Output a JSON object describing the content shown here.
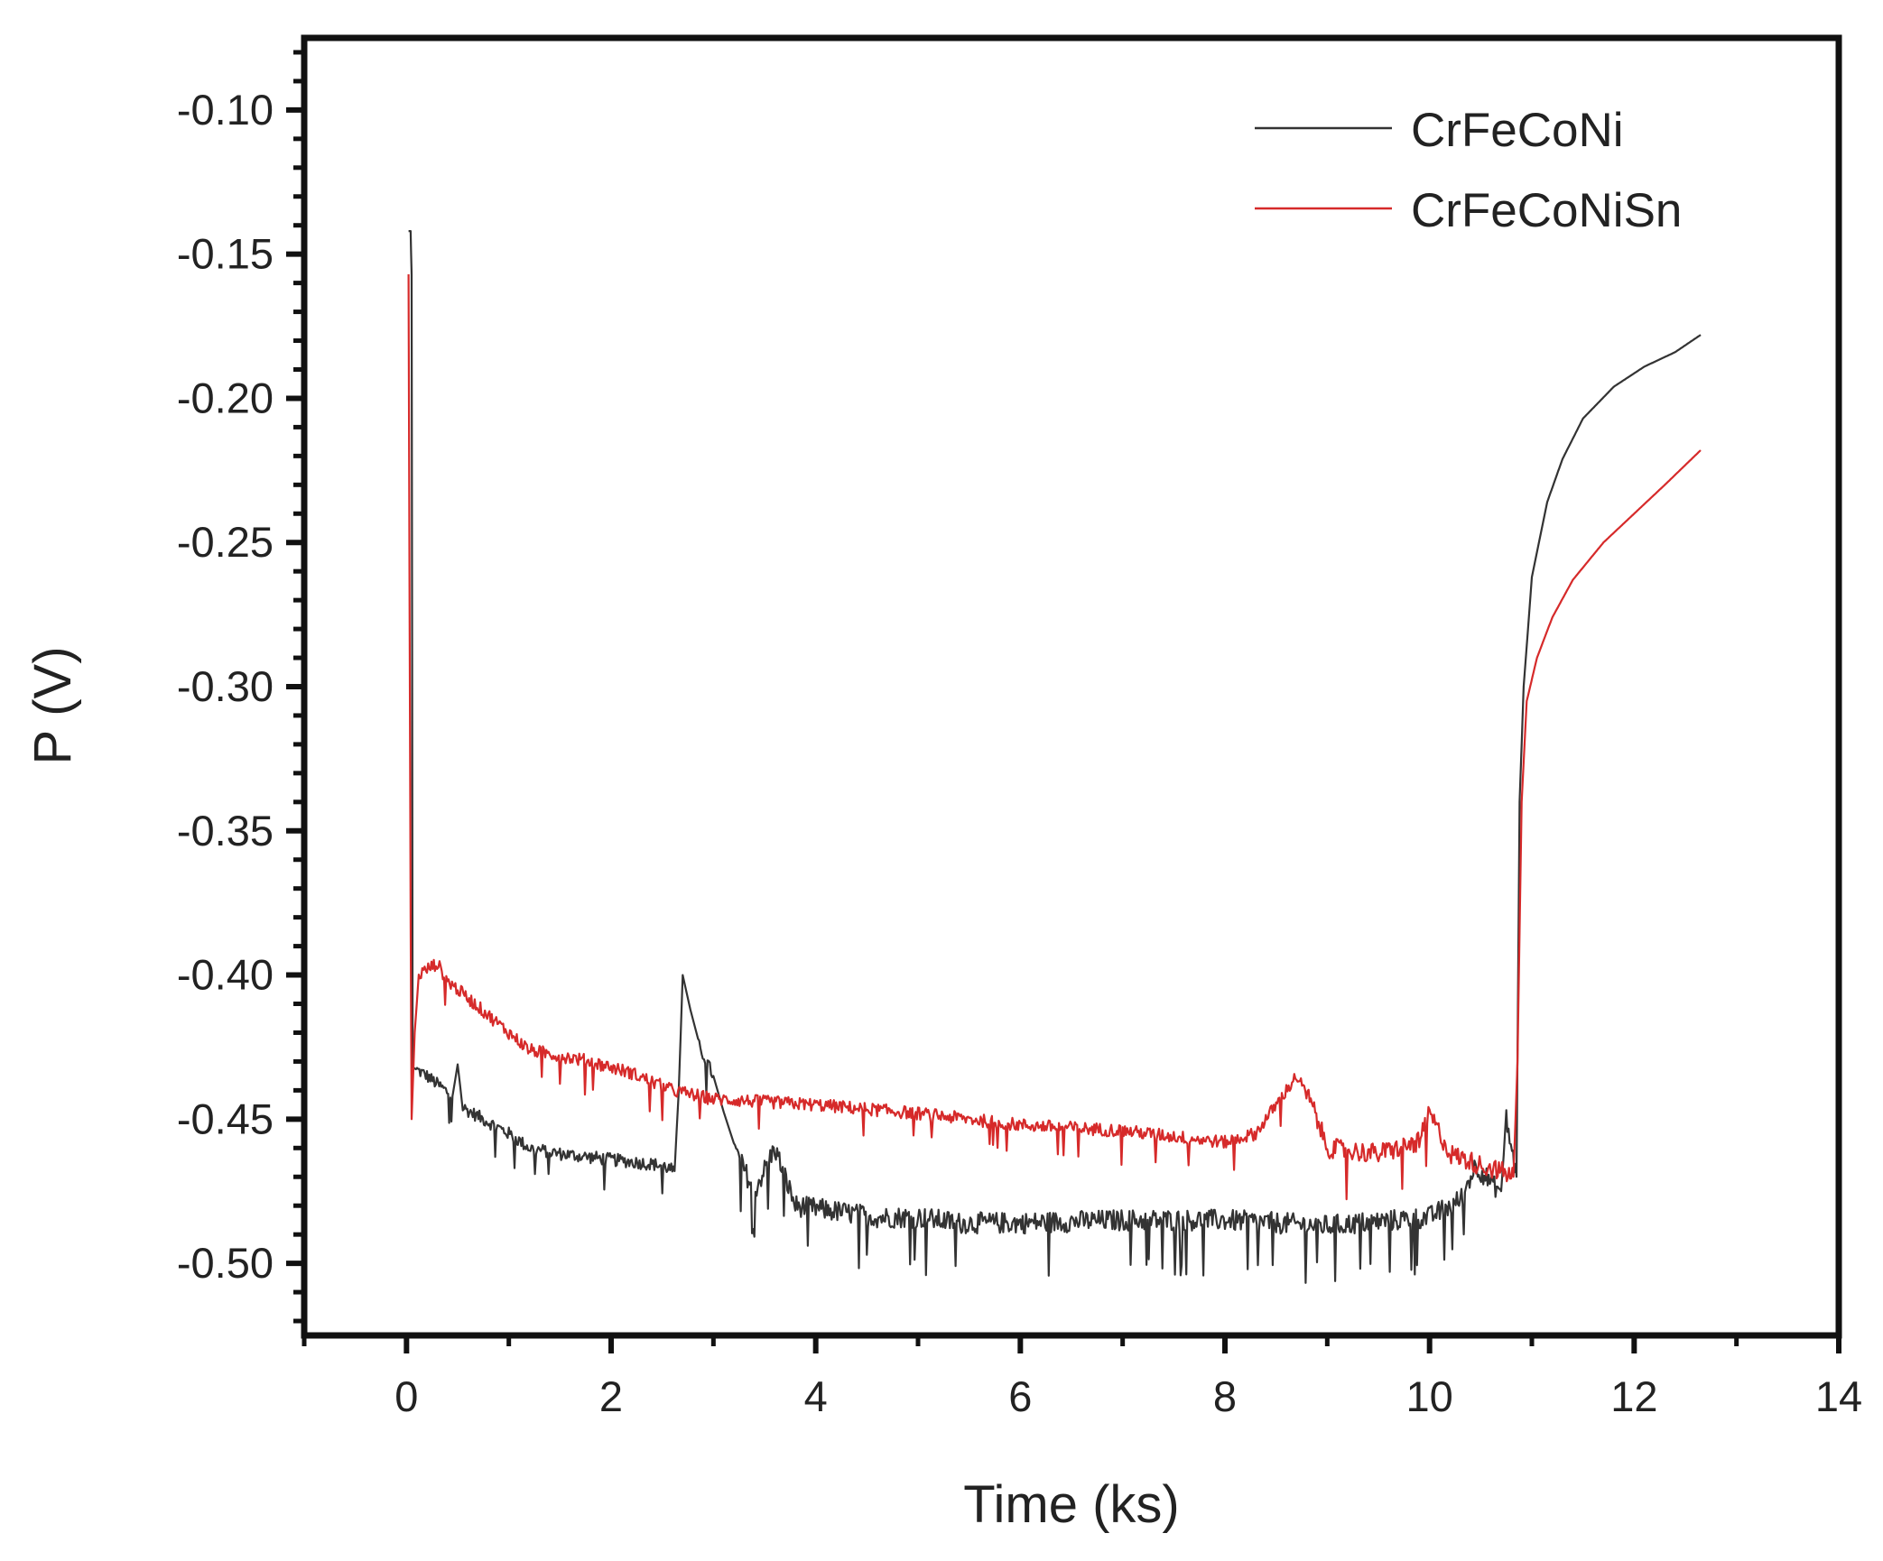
{
  "chart_data": {
    "type": "line",
    "xlabel": "Time (ks)",
    "ylabel": "P (V)",
    "xlim": [
      -1,
      14
    ],
    "ylim": [
      -0.525,
      -0.075
    ],
    "x_ticks": [
      0,
      2,
      4,
      6,
      8,
      10,
      12,
      14
    ],
    "x_tick_labels": [
      "0",
      "2",
      "4",
      "6",
      "8",
      "10",
      "12",
      "14"
    ],
    "y_ticks": [
      -0.1,
      -0.15,
      -0.2,
      -0.25,
      -0.3,
      -0.35,
      -0.4,
      -0.45,
      -0.5
    ],
    "y_tick_labels": [
      "-0.10",
      "-0.15",
      "-0.20",
      "-0.25",
      "-0.30",
      "-0.35",
      "-0.40",
      "-0.45",
      "-0.50"
    ],
    "legend_position": "top-right",
    "grid": false,
    "series": [
      {
        "name": "CrFeCoNi",
        "color": "#333333",
        "points": [
          [
            0.02,
            -0.142
          ],
          [
            0.04,
            -0.142
          ],
          [
            0.05,
            -0.157
          ],
          [
            0.06,
            -0.432
          ],
          [
            0.2,
            -0.435
          ],
          [
            0.45,
            -0.442
          ],
          [
            0.5,
            -0.431
          ],
          [
            0.55,
            -0.446
          ],
          [
            0.8,
            -0.451
          ],
          [
            1.0,
            -0.455
          ],
          [
            1.2,
            -0.46
          ],
          [
            1.5,
            -0.462
          ],
          [
            2.0,
            -0.464
          ],
          [
            2.5,
            -0.466
          ],
          [
            2.62,
            -0.468
          ],
          [
            2.66,
            -0.441
          ],
          [
            2.7,
            -0.4
          ],
          [
            2.85,
            -0.424
          ],
          [
            3.0,
            -0.435
          ],
          [
            3.2,
            -0.46
          ],
          [
            3.4,
            -0.475
          ],
          [
            3.6,
            -0.46
          ],
          [
            3.8,
            -0.48
          ],
          [
            4.2,
            -0.482
          ],
          [
            4.6,
            -0.484
          ],
          [
            5.0,
            -0.484
          ],
          [
            5.4,
            -0.486
          ],
          [
            6.0,
            -0.486
          ],
          [
            7.0,
            -0.485
          ],
          [
            8.0,
            -0.485
          ],
          [
            9.0,
            -0.487
          ],
          [
            10.0,
            -0.484
          ],
          [
            10.3,
            -0.478
          ],
          [
            10.45,
            -0.466
          ],
          [
            10.6,
            -0.472
          ],
          [
            10.7,
            -0.475
          ],
          [
            10.75,
            -0.45
          ],
          [
            10.85,
            -0.47
          ],
          [
            10.88,
            -0.34
          ],
          [
            10.92,
            -0.3
          ],
          [
            11.0,
            -0.262
          ],
          [
            11.15,
            -0.236
          ],
          [
            11.3,
            -0.221
          ],
          [
            11.5,
            -0.207
          ],
          [
            11.8,
            -0.196
          ],
          [
            12.1,
            -0.189
          ],
          [
            12.4,
            -0.184
          ],
          [
            12.65,
            -0.178
          ]
        ]
      },
      {
        "name": "CrFeCoNiSn",
        "color": "#d62a2a",
        "points": [
          [
            0.02,
            -0.157
          ],
          [
            0.04,
            -0.38
          ],
          [
            0.05,
            -0.45
          ],
          [
            0.08,
            -0.42
          ],
          [
            0.12,
            -0.4
          ],
          [
            0.2,
            -0.398
          ],
          [
            0.3,
            -0.396
          ],
          [
            0.4,
            -0.402
          ],
          [
            0.6,
            -0.408
          ],
          [
            0.8,
            -0.414
          ],
          [
            1.0,
            -0.42
          ],
          [
            1.2,
            -0.426
          ],
          [
            1.5,
            -0.428
          ],
          [
            1.8,
            -0.43
          ],
          [
            2.2,
            -0.434
          ],
          [
            2.6,
            -0.44
          ],
          [
            3.0,
            -0.443
          ],
          [
            3.5,
            -0.444
          ],
          [
            4.0,
            -0.445
          ],
          [
            5.0,
            -0.448
          ],
          [
            6.0,
            -0.452
          ],
          [
            7.0,
            -0.454
          ],
          [
            7.5,
            -0.456
          ],
          [
            8.0,
            -0.458
          ],
          [
            8.3,
            -0.455
          ],
          [
            8.5,
            -0.445
          ],
          [
            8.7,
            -0.435
          ],
          [
            8.85,
            -0.445
          ],
          [
            9.0,
            -0.46
          ],
          [
            9.5,
            -0.462
          ],
          [
            9.9,
            -0.458
          ],
          [
            10.0,
            -0.448
          ],
          [
            10.2,
            -0.462
          ],
          [
            10.5,
            -0.466
          ],
          [
            10.7,
            -0.468
          ],
          [
            10.82,
            -0.47
          ],
          [
            10.86,
            -0.43
          ],
          [
            10.9,
            -0.34
          ],
          [
            10.95,
            -0.305
          ],
          [
            11.05,
            -0.29
          ],
          [
            11.2,
            -0.276
          ],
          [
            11.4,
            -0.263
          ],
          [
            11.7,
            -0.25
          ],
          [
            12.0,
            -0.24
          ],
          [
            12.3,
            -0.23
          ],
          [
            12.65,
            -0.218
          ]
        ]
      }
    ]
  }
}
